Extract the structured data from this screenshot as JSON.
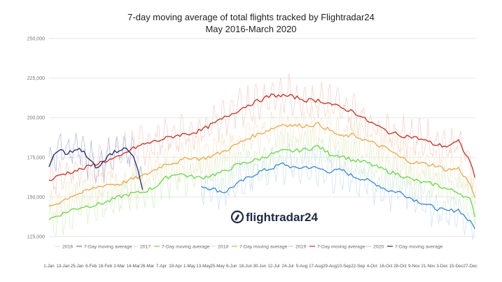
{
  "chart_data": {
    "type": "line",
    "title": "7-day moving average of total flights tracked by Flightradar24",
    "subtitle": "May 2016-March 2020",
    "ylim": [
      110000,
      250000
    ],
    "ytick_labels": [
      "125,000",
      "150,000",
      "175,000",
      "200,000",
      "225,000",
      "250,000"
    ],
    "ytick_values": [
      125000,
      150000,
      175000,
      200000,
      225000,
      250000
    ],
    "xtick_labels": [
      "1-Jan",
      "13-Jan",
      "25-Jan",
      "6-Feb",
      "18-Feb",
      "2-Mar",
      "14-Mar",
      "26-Mar",
      "7-Apr",
      "19-Apr",
      "1-May",
      "13-May",
      "25-May",
      "6-Jun",
      "18-Jun",
      "30-Jun",
      "12-Jul",
      "24-Jul",
      "5-Aug",
      "17-Aug",
      "29-Aug",
      "10-Sep",
      "22-Sep",
      "4-Oct",
      "16-Oct",
      "28-Oct",
      "9-Nov",
      "21-Nov",
      "3-Dec",
      "15-Dec",
      "27-Dec"
    ],
    "xtick_days": [
      0,
      12,
      24,
      36,
      48,
      60,
      72,
      84,
      96,
      108,
      120,
      132,
      144,
      156,
      168,
      180,
      192,
      204,
      216,
      228,
      240,
      252,
      264,
      276,
      288,
      300,
      312,
      324,
      336,
      348,
      360
    ],
    "x_range_days": [
      0,
      365
    ],
    "legend": [
      {
        "label": "2016",
        "color": "#f6d8cc"
      },
      {
        "label": "7-Day moving average",
        "color": "#3a86d4"
      },
      {
        "label": "2017",
        "color": "#c9efb4"
      },
      {
        "label": "7-Day moving average",
        "color": "#6cd44a"
      },
      {
        "label": "2018",
        "color": "#f7deb4"
      },
      {
        "label": "7-Day moving average",
        "color": "#e8a84a"
      },
      {
        "label": "2019",
        "color": "#f4c4bc"
      },
      {
        "label": "7-Day moving average",
        "color": "#c4301e"
      },
      {
        "label": "2020",
        "color": "#c9cde6"
      },
      {
        "label": "7-Day moving average",
        "color": "#1b2a6e"
      }
    ],
    "series": [
      {
        "name": "2016 7-Day moving average",
        "color": "#3a86d4",
        "raw_color": "#cfe3f5",
        "x": [
          130,
          140,
          150,
          160,
          170,
          180,
          190,
          200,
          210,
          220,
          230,
          240,
          250,
          260,
          270,
          280,
          290,
          300,
          310,
          320,
          330,
          340,
          350,
          360,
          365
        ],
        "values": [
          157000,
          155000,
          153000,
          158000,
          162000,
          166000,
          168000,
          171000,
          168000,
          169000,
          168000,
          166000,
          167000,
          163000,
          161000,
          158000,
          154000,
          153000,
          149000,
          146000,
          143000,
          141000,
          142000,
          134000,
          130000
        ]
      },
      {
        "name": "2017 7-Day moving average",
        "color": "#6cd44a",
        "raw_color": "#d6f3c8",
        "x": [
          0,
          10,
          20,
          30,
          40,
          50,
          60,
          70,
          80,
          90,
          100,
          110,
          120,
          130,
          140,
          150,
          160,
          170,
          180,
          190,
          200,
          210,
          220,
          230,
          240,
          250,
          260,
          270,
          280,
          290,
          300,
          310,
          320,
          330,
          340,
          350,
          360,
          365
        ],
        "values": [
          136000,
          139000,
          142000,
          144000,
          145000,
          147000,
          150000,
          152000,
          153000,
          156000,
          162000,
          165000,
          163000,
          162000,
          164000,
          166000,
          170000,
          172000,
          174000,
          177000,
          179000,
          179000,
          180000,
          182000,
          177000,
          176000,
          173000,
          172000,
          169000,
          166000,
          164000,
          161000,
          159000,
          158000,
          155000,
          153000,
          148000,
          136000
        ]
      },
      {
        "name": "2018 7-Day moving average",
        "color": "#e8a84a",
        "raw_color": "#f9e6c7",
        "x": [
          0,
          10,
          20,
          30,
          40,
          50,
          60,
          70,
          80,
          90,
          100,
          110,
          120,
          130,
          140,
          150,
          160,
          170,
          180,
          190,
          200,
          210,
          220,
          230,
          240,
          250,
          260,
          270,
          280,
          290,
          300,
          310,
          320,
          330,
          340,
          350,
          360,
          365
        ],
        "values": [
          144000,
          147000,
          151000,
          153000,
          156000,
          158000,
          158000,
          161000,
          163000,
          167000,
          171000,
          172000,
          175000,
          174000,
          176000,
          179000,
          183000,
          187000,
          190000,
          193000,
          196000,
          195000,
          195000,
          196000,
          192000,
          188000,
          189000,
          186000,
          183000,
          180000,
          175000,
          172000,
          171000,
          170000,
          167000,
          168000,
          158000,
          146000
        ]
      },
      {
        "name": "2019 7-Day moving average",
        "color": "#c4301e",
        "raw_color": "#f6d2cc",
        "x": [
          0,
          10,
          20,
          30,
          40,
          50,
          60,
          70,
          80,
          90,
          100,
          110,
          120,
          130,
          140,
          150,
          160,
          170,
          180,
          190,
          200,
          210,
          220,
          230,
          240,
          250,
          260,
          270,
          280,
          290,
          300,
          310,
          320,
          330,
          340,
          350,
          360,
          365
        ],
        "values": [
          160000,
          164000,
          166000,
          168000,
          171000,
          173000,
          175000,
          180000,
          183000,
          185000,
          187000,
          189000,
          190000,
          192000,
          196000,
          200000,
          204000,
          208000,
          211000,
          214000,
          214000,
          213000,
          211000,
          211000,
          209000,
          206000,
          204000,
          199000,
          195000,
          191000,
          189000,
          188000,
          186000,
          183000,
          182000,
          185000,
          172000,
          161000
        ]
      },
      {
        "name": "2020 7-Day moving average",
        "color": "#1b2a6e",
        "raw_color": "#b8bfe0",
        "x": [
          0,
          5,
          10,
          15,
          20,
          25,
          30,
          35,
          40,
          45,
          50,
          55,
          60,
          65,
          70,
          75,
          80
        ],
        "values": [
          170000,
          178000,
          180000,
          177000,
          179000,
          181000,
          178000,
          174000,
          168000,
          170000,
          176000,
          178000,
          179000,
          180000,
          178000,
          170000,
          154000
        ]
      }
    ]
  },
  "logo": {
    "text": "flightradar24"
  }
}
